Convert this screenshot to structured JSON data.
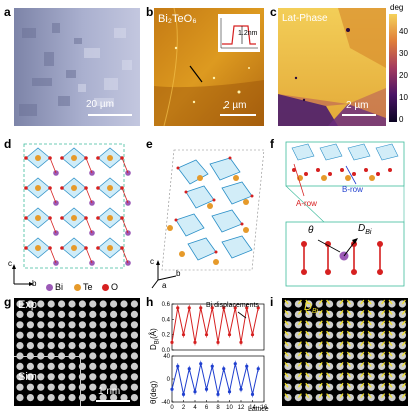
{
  "panels": {
    "a": {
      "label": "a",
      "scale": "20 µm"
    },
    "b": {
      "label": "b",
      "material": "Bi₂TeO₆",
      "inset_value": "1.2nm",
      "scale": "2 µm"
    },
    "c": {
      "label": "c",
      "phase": "Lat-Phase",
      "cbar_unit": "deg",
      "cbar_ticks": [
        "40",
        "30",
        "20",
        "10",
        "0"
      ],
      "scale": "2 µm"
    },
    "d": {
      "label": "d",
      "axis_c": "c",
      "axis_b": "b",
      "legend": [
        {
          "name": "Bi",
          "color": "#9b59b6"
        },
        {
          "name": "Te",
          "color": "#e69a2a"
        },
        {
          "name": "O",
          "color": "#d62020"
        }
      ]
    },
    "e": {
      "label": "e",
      "axis_c": "c",
      "axis_b": "b",
      "axis_a": "a"
    },
    "f": {
      "label": "f",
      "a_row": "A-row",
      "b_row": "B-row",
      "theta": "θ",
      "dbi": "D",
      "dbi_sub": "Bi"
    },
    "g": {
      "label": "g",
      "exp": "Exp",
      "sim": "Sim",
      "scale": "1 nm"
    },
    "h": {
      "label": "h",
      "legend_text": "Bi displacements",
      "ylabel_top": "D",
      "ylabel_top_sub": "Bi",
      "ylabel_top_unit": "(Å)",
      "ylabel_bottom": "θ(deg)",
      "xlabel": "Lattice"
    },
    "i": {
      "label": "i",
      "dbi": "D",
      "dbi_sub": "Bi"
    }
  },
  "chart_data": [
    {
      "type": "line",
      "name": "h-top",
      "ylabel": "D_Bi(Å)",
      "x": [
        0,
        1,
        2,
        3,
        4,
        5,
        6,
        7,
        8,
        9,
        10,
        11,
        12,
        13,
        14,
        15
      ],
      "values": [
        0.1,
        0.55,
        0.2,
        0.55,
        0.1,
        0.55,
        0.2,
        0.55,
        0.1,
        0.55,
        0.2,
        0.55,
        0.1,
        0.55,
        0.2,
        0.55
      ],
      "ylim": [
        0,
        0.6
      ],
      "yticks": [
        "0.6",
        "0.4",
        "0.2",
        "0.0"
      ],
      "color": "#d62020"
    },
    {
      "type": "line",
      "name": "h-bottom",
      "ylabel": "θ(deg)",
      "xlabel": "Lattice",
      "x": [
        0,
        1,
        2,
        3,
        4,
        5,
        6,
        7,
        8,
        9,
        10,
        11,
        12,
        13,
        14,
        15
      ],
      "values": [
        -20,
        25,
        -30,
        20,
        -25,
        30,
        -20,
        25,
        -30,
        20,
        -25,
        30,
        -20,
        25,
        -30,
        20
      ],
      "ylim": [
        -45,
        45
      ],
      "yticks": [
        "40",
        "0",
        "-40"
      ],
      "xticks": [
        "0",
        "2",
        "4",
        "6",
        "8",
        "10",
        "12",
        "14",
        "16"
      ],
      "color": "#1f3fcf"
    }
  ]
}
